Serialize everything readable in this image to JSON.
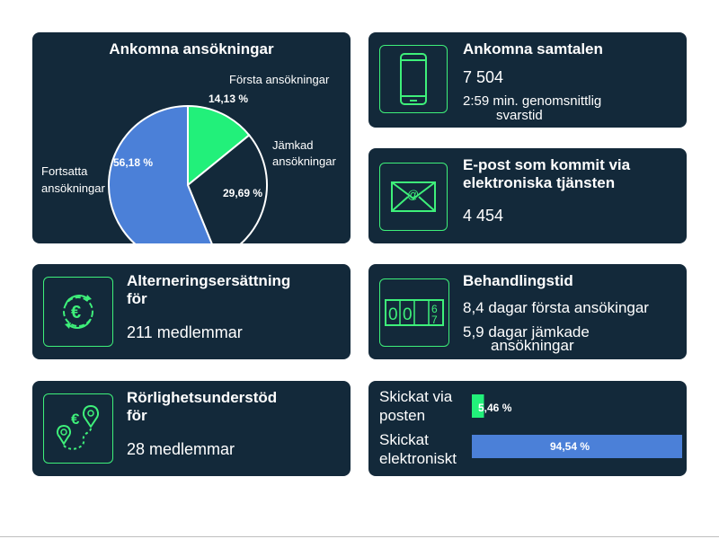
{
  "pie": {
    "title": "Ankomna ansökningar",
    "labels": {
      "forsta": "Första ansökningar",
      "jamkad_1": "Jämkad",
      "jamkad_2": "ansökningar",
      "fortsatta_1": "Fortsatta",
      "fortsatta_2": "ansökningar"
    },
    "value_labels": {
      "forsta": "14,13 %",
      "jamkad": "29,69 %",
      "fortsatta": "56,18 %"
    }
  },
  "chart_data": [
    {
      "type": "pie",
      "title": "Ankomna ansökningar",
      "categories": [
        "Första ansökningar",
        "Jämkad ansökningar",
        "Fortsatta ansökningar"
      ],
      "values": [
        14.13,
        29.69,
        56.18
      ],
      "unit": "%",
      "colors": [
        "#22f07a",
        "#13293a",
        "#4b80d8"
      ]
    },
    {
      "type": "bar",
      "orientation": "horizontal",
      "categories": [
        "Skickat via posten",
        "Skickat elektroniskt"
      ],
      "values": [
        5.46,
        94.54
      ],
      "unit": "%",
      "colors": [
        "#22f07a",
        "#4b80d8"
      ]
    }
  ],
  "calls": {
    "title": "Ankomna samtalen",
    "value": "7 504",
    "note_1": "2:59 min. genomsnittlig",
    "note_2": "svarstid",
    "icon": "phone-icon"
  },
  "email": {
    "title_1": "E-post som kommit via",
    "title_2": "elektroniska tjänsten",
    "value": "4 454",
    "icon": "email-icon"
  },
  "alternation": {
    "title_1": "Alterneringsersättning",
    "title_2": "för",
    "value": "211 medlemmar",
    "icon": "euro-gear-icon"
  },
  "processing": {
    "title": "Behandlingstid",
    "line_1": "8,4 dagar första ansökingar",
    "line_2a": "5,9 dagar jämkade",
    "line_2b": "ansökningar",
    "icon": "counter-icon",
    "digits": [
      "0",
      "0",
      "6",
      "7"
    ]
  },
  "mobility": {
    "title_1": "Rörlighetsunderstöd",
    "title_2": "för",
    "value": "28 medlemmar",
    "icon": "map-euro-icon"
  },
  "delivery": {
    "label_post_1": "Skickat via",
    "label_post_2": "posten",
    "value_post": "5,46 %",
    "label_el_1": "Skickat",
    "label_el_2": "elektroniskt",
    "value_el": "94,54 %"
  },
  "colors": {
    "card": "#13293a",
    "accent_green": "#22f07a",
    "icon_green": "#3ef07a",
    "accent_blue": "#4b80d8"
  }
}
